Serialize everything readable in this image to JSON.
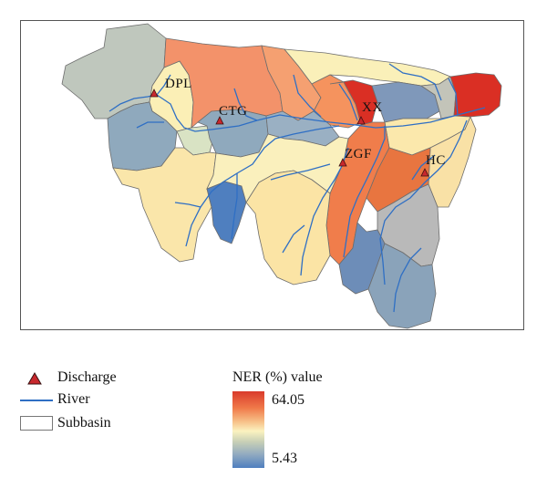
{
  "stations": [
    {
      "id": "dpl",
      "label": "DPL"
    },
    {
      "id": "ctg",
      "label": "CTG"
    },
    {
      "id": "xx",
      "label": "XX"
    },
    {
      "id": "zgf",
      "label": "ZGF"
    },
    {
      "id": "hc",
      "label": "HC"
    }
  ],
  "legend": {
    "discharge": "Discharge",
    "river": "River",
    "subbasin": "Subbasin",
    "ner_title": "NER (%) value",
    "ner_max": "64.05",
    "ner_min": "5.43"
  },
  "colors": {
    "high": "#d93a2b",
    "mid": "#fbf2c0",
    "low": "#4f7fbf",
    "river": "#2f6fc4",
    "discharge_marker": "#c8282d"
  }
}
